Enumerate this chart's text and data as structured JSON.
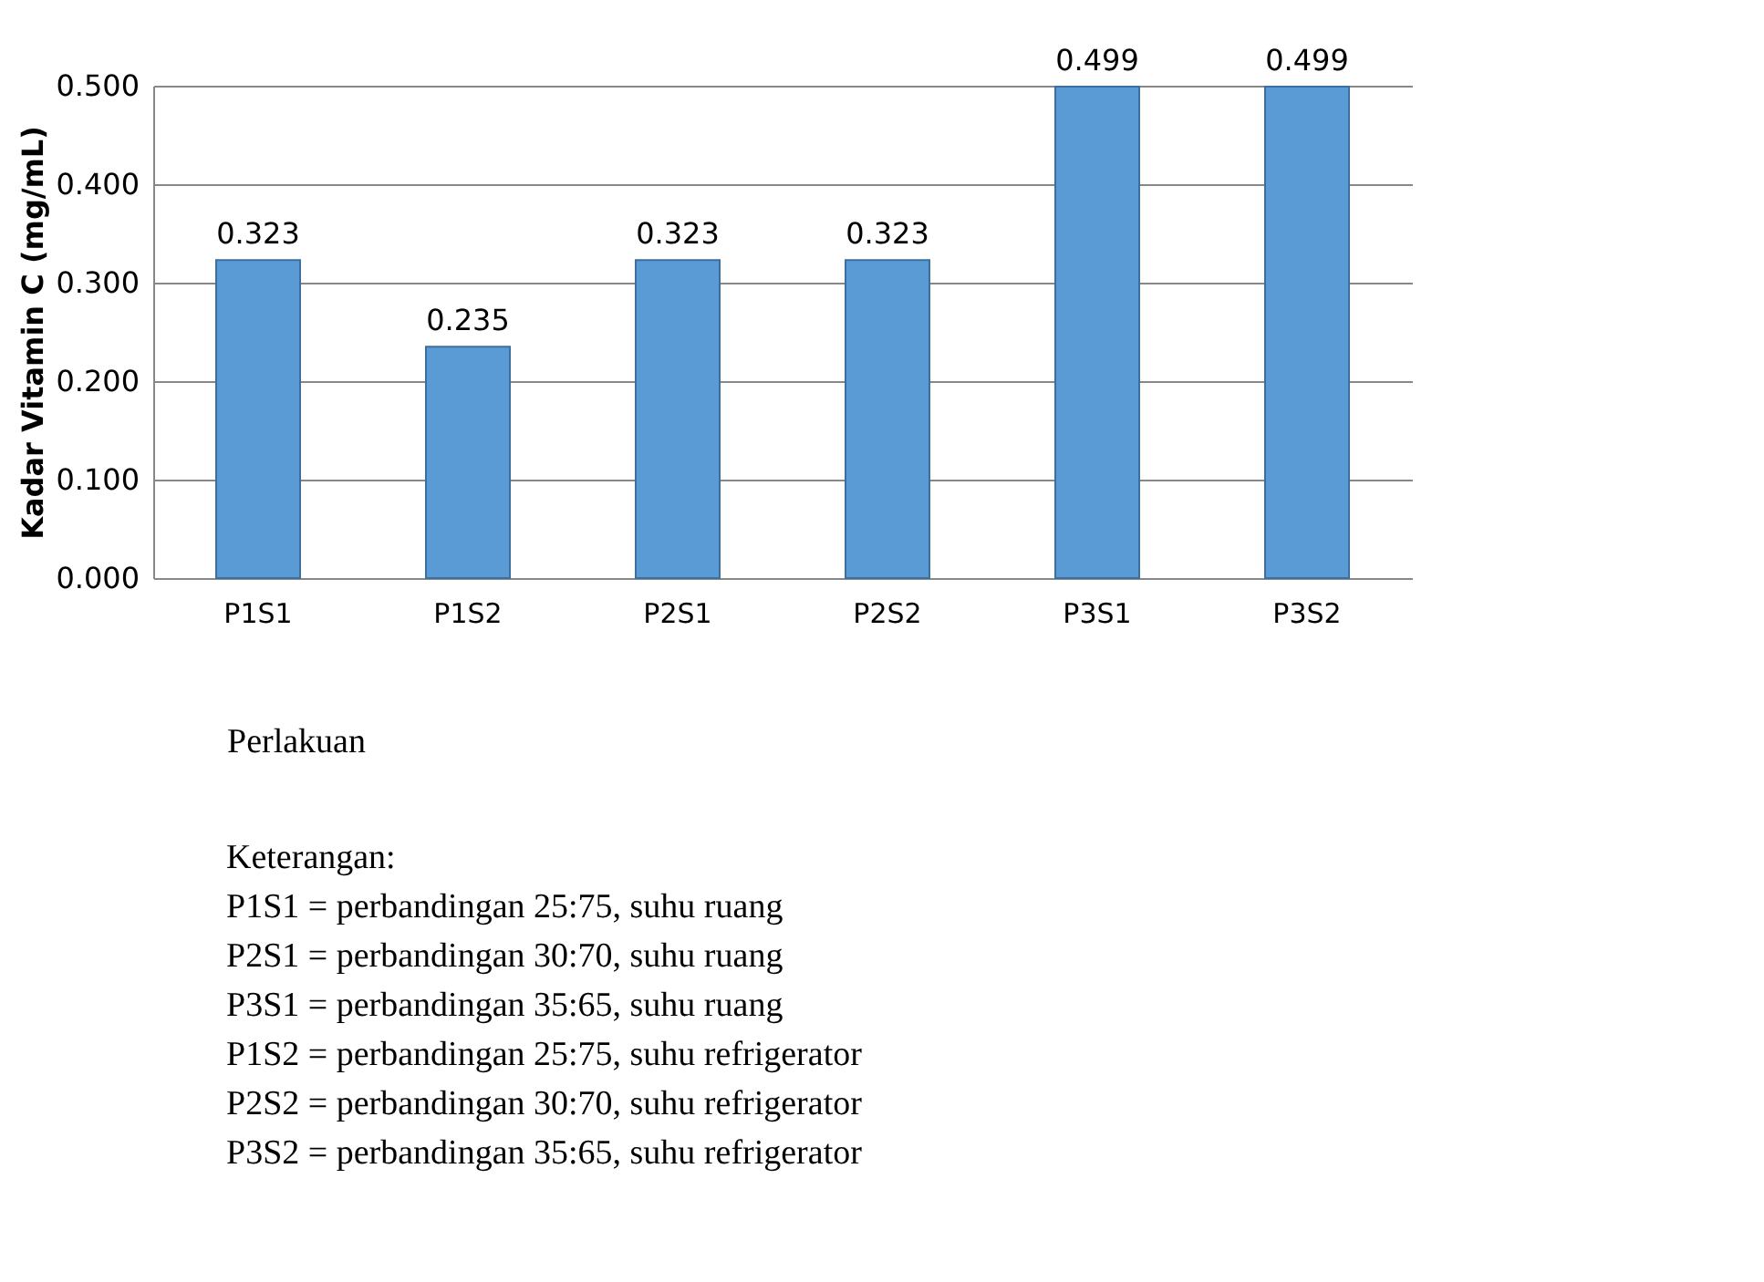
{
  "chart_data": {
    "type": "bar",
    "categories": [
      "P1S1",
      "P1S2",
      "P2S1",
      "P2S2",
      "P3S1",
      "P3S2"
    ],
    "values": [
      0.323,
      0.235,
      0.323,
      0.323,
      0.499,
      0.499
    ],
    "color": "#5b9bd5",
    "ylabel": "Kadar Vitamin C (mg/mL)",
    "xlabel": "Perlakuan",
    "ylim": [
      0,
      0.5
    ],
    "yticks": [
      {
        "value": 0,
        "label": "0.000"
      },
      {
        "value": 0.1,
        "label": "0.100"
      },
      {
        "value": 0.2,
        "label": "0.200"
      },
      {
        "value": 0.3,
        "label": "0.300"
      },
      {
        "value": 0.4,
        "label": "0.400"
      },
      {
        "value": 0.5,
        "label": "0.500"
      }
    ],
    "grid": "y",
    "data_labels": true,
    "annotations": [
      "Keterangan:",
      "P1S1 = perbandingan 25:75, suhu ruang",
      "P2S1 = perbandingan 30:70, suhu ruang",
      "P3S1 = perbandingan 35:65, suhu ruang",
      "P1S2 = perbandingan 25:75, suhu refrigerator",
      "P2S2 = perbandingan 30:70, suhu refrigerator",
      "P3S2 = perbandingan 35:65, suhu refrigerator"
    ]
  }
}
